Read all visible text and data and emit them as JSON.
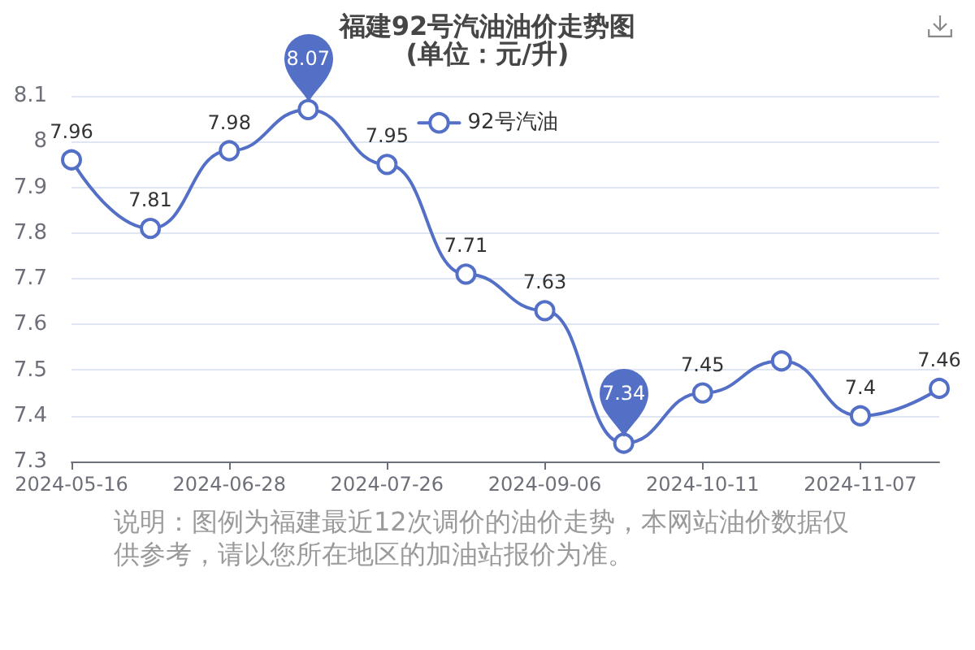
{
  "chart_data": {
    "type": "line",
    "title": "福建92号汽油油价走势图",
    "subtitle": "(单位：元/升)",
    "categories": [
      "2024-05-16",
      null,
      "2024-06-28",
      null,
      "2024-07-26",
      null,
      "2024-09-06",
      null,
      "2024-10-11",
      null,
      "2024-11-07",
      null
    ],
    "series": [
      {
        "name": "92号汽油",
        "color": "#5470c6",
        "values": [
          7.96,
          7.81,
          7.98,
          8.07,
          7.95,
          7.71,
          7.63,
          7.34,
          7.45,
          7.52,
          7.4,
          7.46
        ],
        "value_labels": [
          "7.96",
          "7.81",
          "7.98",
          null,
          "7.95",
          "7.71",
          "7.63",
          null,
          "7.45",
          null,
          "7.4",
          "7.46"
        ]
      }
    ],
    "ylim": [
      7.3,
      8.1
    ],
    "yticks": [
      7.3,
      7.4,
      7.5,
      7.6,
      7.7,
      7.8,
      7.9,
      8,
      8.1
    ],
    "grid": "y",
    "legend": "top",
    "marker": "circle",
    "line_style": "solid",
    "annotations": [
      {
        "text": "8.07",
        "y": 8.07
      },
      {
        "text": "7.34",
        "y": 7.34
      },
      "说明：图例为福建最近12次调价的油价走势，本网站油价数据仅供参考，请以您所在地区的加油站报价为准。"
    ]
  }
}
